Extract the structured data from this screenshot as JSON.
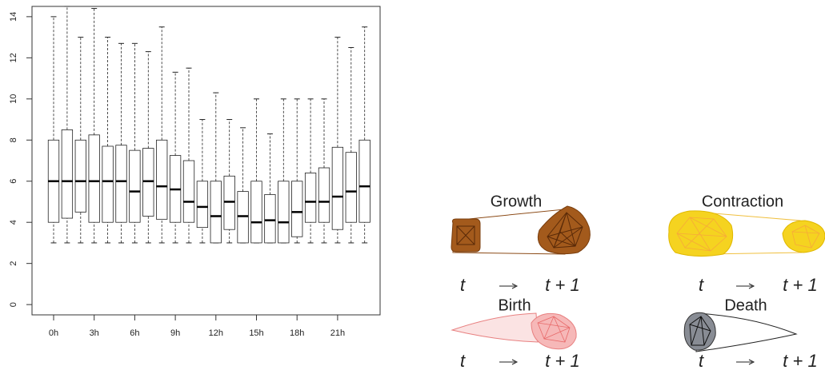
{
  "chart_data": {
    "type": "box",
    "categories": [
      "0h",
      null,
      null,
      "3h",
      null,
      null,
      "6h",
      null,
      null,
      "9h",
      null,
      null,
      "12h",
      null,
      null,
      "15h",
      null,
      null,
      "18h",
      null,
      null,
      "21h",
      null,
      null
    ],
    "low": [
      3,
      3,
      3,
      3,
      3,
      3,
      3,
      3,
      3,
      3,
      3,
      3,
      3,
      3,
      3,
      3,
      3,
      3,
      3,
      3,
      3,
      3,
      3,
      3
    ],
    "q1": [
      4,
      4.2,
      4.5,
      4,
      4,
      4,
      4,
      4.3,
      4.15,
      4,
      4,
      3.75,
      3,
      3.65,
      3,
      3,
      3,
      3,
      3.3,
      4,
      4,
      3.65,
      4,
      4
    ],
    "median": [
      6,
      6,
      6,
      6,
      6,
      6,
      5.5,
      6,
      5.75,
      5.6,
      5,
      4.75,
      4.3,
      5,
      4.3,
      4,
      4.1,
      4,
      4.5,
      5,
      5,
      5.25,
      5.5,
      5.75
    ],
    "q3": [
      8,
      8.5,
      8,
      8.25,
      7.7,
      7.75,
      7.5,
      7.6,
      8,
      7.25,
      7,
      6,
      6,
      6.25,
      5.5,
      6,
      5.35,
      6,
      6,
      6.4,
      6.65,
      7.65,
      7.4,
      8
    ],
    "high": [
      14,
      14.5,
      13,
      14.4,
      13,
      12.7,
      12.7,
      12.3,
      13.5,
      11.3,
      11.5,
      9,
      10.3,
      9,
      8.6,
      10,
      8.3,
      10,
      10,
      10,
      10,
      13,
      12.5,
      13.5
    ],
    "ylim": [
      -0.5,
      14.5
    ],
    "yticks": [
      0,
      2,
      4,
      6,
      8,
      10,
      12,
      14
    ]
  },
  "diagram": {
    "panels": [
      {
        "title": "Growth",
        "from": "t",
        "to": "t + 1"
      },
      {
        "title": "Contraction",
        "from": "t",
        "to": "t + 1"
      },
      {
        "title": "Birth",
        "from": "t",
        "to": "t + 1"
      },
      {
        "title": "Death",
        "from": "t",
        "to": "t + 1"
      }
    ]
  }
}
